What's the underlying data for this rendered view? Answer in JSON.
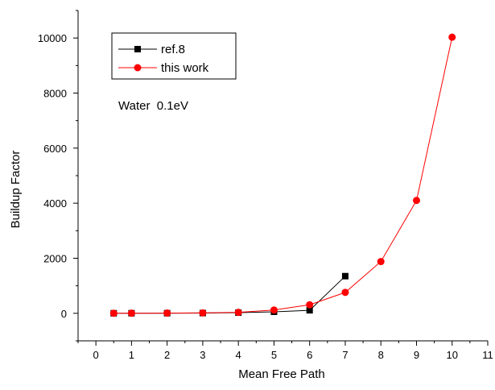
{
  "chart_data": {
    "type": "line",
    "xlabel": "Mean Free Path",
    "ylabel": "Buildup Factor",
    "annotation": "Water  0.1eV",
    "xlim": [
      -0.5,
      11
    ],
    "ylim": [
      -1000,
      11000
    ],
    "xticks": [
      0,
      1,
      2,
      3,
      4,
      5,
      6,
      7,
      8,
      9,
      10,
      11
    ],
    "yticks": [
      0,
      2000,
      4000,
      6000,
      8000,
      10000
    ],
    "legend_position": "top-left",
    "grid": false,
    "series": [
      {
        "name": "ref.8",
        "color": "#000000",
        "marker": "square",
        "x": [
          0.5,
          1,
          2,
          3,
          4,
          5,
          6,
          7
        ],
        "y": [
          2,
          3,
          5,
          10,
          25,
          55,
          110,
          1350
        ]
      },
      {
        "name": "this work",
        "color": "#ff0000",
        "marker": "circle",
        "x": [
          0.5,
          1,
          2,
          3,
          4,
          5,
          6,
          7,
          8,
          9,
          10
        ],
        "y": [
          3,
          5,
          8,
          15,
          35,
          120,
          310,
          760,
          1880,
          4100,
          10030
        ]
      }
    ]
  }
}
